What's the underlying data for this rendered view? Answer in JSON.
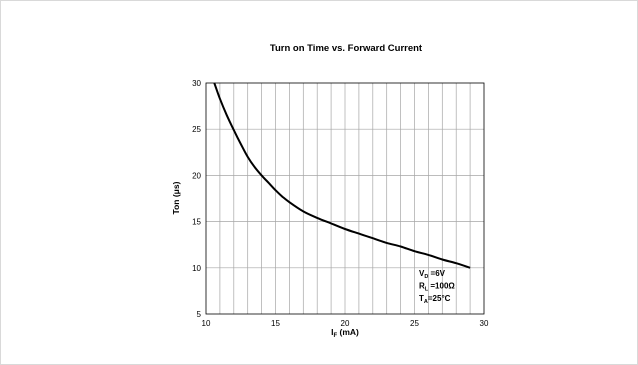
{
  "chart_data": {
    "type": "line",
    "title": "Turn on Time vs. Forward Current",
    "xlabel": {
      "main": "I",
      "sub": "F",
      "rest": " (mA)"
    },
    "ylabel": "Ton (μs)",
    "xlim": [
      10,
      30
    ],
    "ylim": [
      5,
      30
    ],
    "x_ticks": [
      10,
      15,
      20,
      25,
      30
    ],
    "y_ticks": [
      5,
      10,
      15,
      20,
      25,
      30
    ],
    "x_minor_step": 1,
    "grid": true,
    "series": [
      {
        "color": "#000000",
        "x": [
          10.6,
          11,
          11.5,
          12,
          12.5,
          13,
          13.5,
          14,
          14.5,
          15,
          15.5,
          16,
          17,
          18,
          19,
          20,
          21,
          22,
          23,
          24,
          25,
          26,
          27,
          28,
          29
        ],
        "y": [
          30,
          28.3,
          26.5,
          24.9,
          23.4,
          22.0,
          20.9,
          20.0,
          19.2,
          18.4,
          17.7,
          17.1,
          16.1,
          15.4,
          14.8,
          14.2,
          13.7,
          13.2,
          12.7,
          12.3,
          11.8,
          11.4,
          10.9,
          10.5,
          10.0
        ]
      }
    ],
    "annotations": [
      {
        "main": "V",
        "sub": "D",
        "rest": " =6V"
      },
      {
        "main": "R",
        "sub": "L",
        "rest": " =100Ω"
      },
      {
        "main": "T",
        "sub": "A",
        "rest": "=25°C"
      }
    ]
  }
}
